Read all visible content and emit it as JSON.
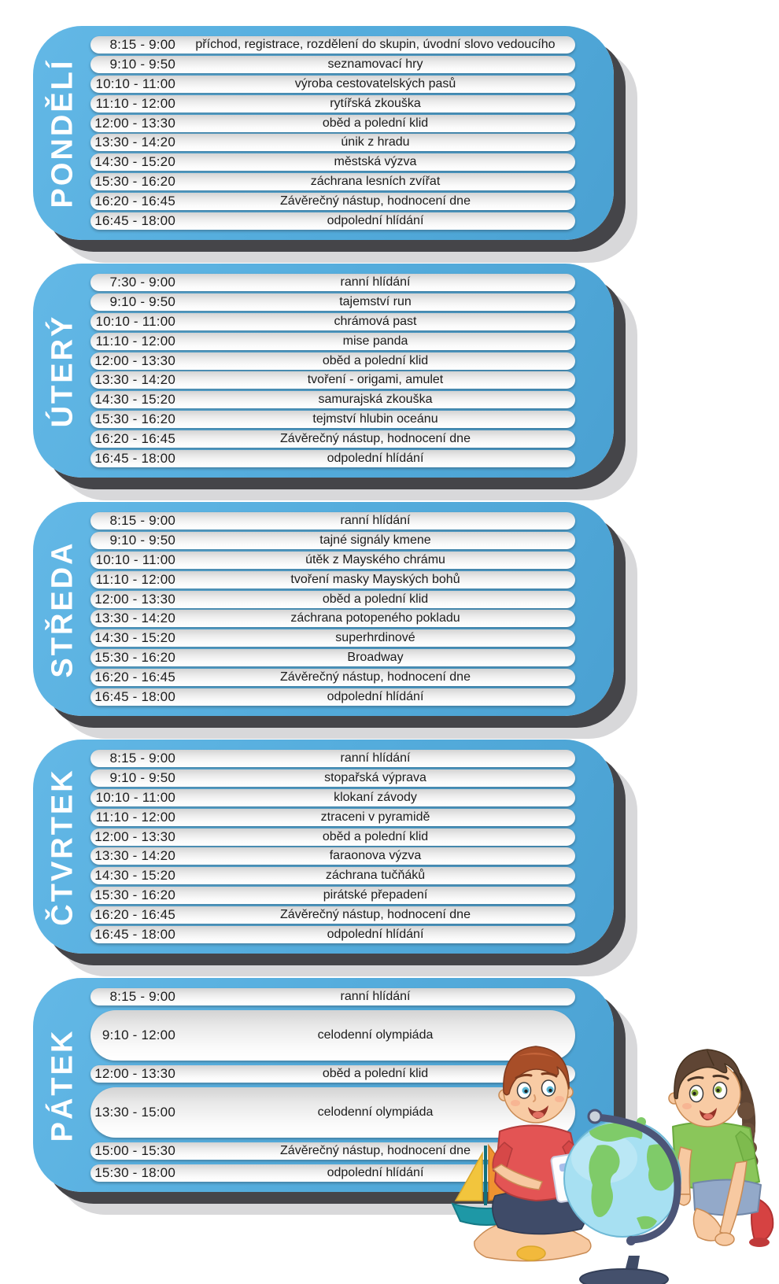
{
  "theme": {
    "card_blue": "#55ADDD",
    "shadow_dark": "#454549",
    "shadow_light": "#D8D8DA",
    "row_gradient_top": "#D3D3D3",
    "row_gradient_bottom": "#FFFFFF",
    "row_text_color": "#1C1C1C",
    "day_label_color": "#FFFFFF"
  },
  "days": [
    {
      "label": "PONDĚLÍ",
      "rows": [
        {
          "time": "8:15 - 9:00",
          "activity": "příchod, registrace, rozdělení do skupin, úvodní slovo vedoucího"
        },
        {
          "time": "9:10 - 9:50",
          "activity": "seznamovací hry"
        },
        {
          "time": "10:10 - 11:00",
          "activity": "výroba cestovatelských pasů"
        },
        {
          "time": "11:10 - 12:00",
          "activity": "rytířská zkouška"
        },
        {
          "time": "12:00 - 13:30",
          "activity": "oběd a polední klid"
        },
        {
          "time": "13:30 - 14:20",
          "activity": "únik z hradu"
        },
        {
          "time": "14:30 - 15:20",
          "activity": "městská výzva"
        },
        {
          "time": "15:30 - 16:20",
          "activity": "záchrana lesních zvířat"
        },
        {
          "time": "16:20 - 16:45",
          "activity": "Závěrečný nástup, hodnocení dne"
        },
        {
          "time": "16:45 - 18:00",
          "activity": "odpolední hlídání"
        }
      ]
    },
    {
      "label": "ÚTERÝ",
      "rows": [
        {
          "time": "7:30 - 9:00",
          "activity": "ranní hlídání"
        },
        {
          "time": "9:10 - 9:50",
          "activity": "tajemství run"
        },
        {
          "time": "10:10 - 11:00",
          "activity": "chrámová past"
        },
        {
          "time": "11:10 - 12:00",
          "activity": "mise panda"
        },
        {
          "time": "12:00 - 13:30",
          "activity": "oběd a polední klid"
        },
        {
          "time": "13:30 - 14:20",
          "activity": "tvoření - origami, amulet"
        },
        {
          "time": "14:30 - 15:20",
          "activity": "samurajská zkouška"
        },
        {
          "time": "15:30 - 16:20",
          "activity": "tejmství hlubin oceánu"
        },
        {
          "time": "16:20 - 16:45",
          "activity": "Závěrečný nástup, hodnocení dne"
        },
        {
          "time": "16:45 - 18:00",
          "activity": "odpolední hlídání"
        }
      ]
    },
    {
      "label": "STŘEDA",
      "rows": [
        {
          "time": "8:15 - 9:00",
          "activity": "ranní hlídání"
        },
        {
          "time": "9:10 - 9:50",
          "activity": "tajné signály kmene"
        },
        {
          "time": "10:10 - 11:00",
          "activity": "útěk z Mayského chrámu"
        },
        {
          "time": "11:10 - 12:00",
          "activity": "tvoření masky Mayských bohů"
        },
        {
          "time": "12:00 - 13:30",
          "activity": "oběd a polední klid"
        },
        {
          "time": "13:30 - 14:20",
          "activity": "záchrana potopeného pokladu"
        },
        {
          "time": "14:30 - 15:20",
          "activity": "superhrdinové"
        },
        {
          "time": "15:30 - 16:20",
          "activity": "Broadway"
        },
        {
          "time": "16:20 - 16:45",
          "activity": "Závěrečný nástup, hodnocení dne"
        },
        {
          "time": "16:45 - 18:00",
          "activity": "odpolední hlídání"
        }
      ]
    },
    {
      "label": "ČTVRTEK",
      "rows": [
        {
          "time": "8:15 - 9:00",
          "activity": "ranní hlídání"
        },
        {
          "time": "9:10 - 9:50",
          "activity": "stopařská výprava"
        },
        {
          "time": "10:10 - 11:00",
          "activity": "klokaní závody"
        },
        {
          "time": "11:10 - 12:00",
          "activity": "ztraceni v pyramidě"
        },
        {
          "time": "12:00 - 13:30",
          "activity": "oběd a polední klid"
        },
        {
          "time": "13:30 - 14:20",
          "activity": "faraonova výzva"
        },
        {
          "time": "14:30 - 15:20",
          "activity": "záchrana tučňáků"
        },
        {
          "time": "15:30 - 16:20",
          "activity": "pirátské přepadení"
        },
        {
          "time": "16:20 - 16:45",
          "activity": "Závěrečný nástup, hodnocení dne"
        },
        {
          "time": "16:45 - 18:00",
          "activity": "odpolední hlídání"
        }
      ]
    },
    {
      "label": "PÁTEK",
      "rows": [
        {
          "time": "8:15 - 9:00",
          "activity": "ranní hlídání"
        },
        {
          "time": "9:10 - 12:00",
          "activity": "celodenní olympiáda",
          "tall": true
        },
        {
          "time": "12:00 - 13:30",
          "activity": "oběd a polední klid"
        },
        {
          "time": "13:30 - 15:00",
          "activity": "celodenní olympiáda",
          "tall": true
        },
        {
          "time": "15:00 - 15:30",
          "activity": "Závěrečný nástup, hodnocení dne"
        },
        {
          "time": "15:30 - 18:00",
          "activity": "odpolední hlídání"
        }
      ]
    }
  ],
  "illustration": {
    "items": [
      {
        "name": "boy-with-postcard-illustration"
      },
      {
        "name": "girl-kneeling-illustration"
      },
      {
        "name": "globe-on-stand-illustration"
      },
      {
        "name": "sailboat-illustration"
      }
    ],
    "colors": {
      "globe_ocean": "#A7E0F2",
      "globe_land": "#7FCB69",
      "globe_stand": "#44506C",
      "boy_shirt": "#E35454",
      "boy_hair": "#A84E28",
      "girl_shirt": "#8AC65A",
      "girl_hair": "#5F4534",
      "skin": "#F7C9A1",
      "boat_hull": "#1E98A6",
      "sail_yellow": "#F2C53D",
      "sail_orange": "#EF9230",
      "shoe_red": "#D64242"
    }
  }
}
